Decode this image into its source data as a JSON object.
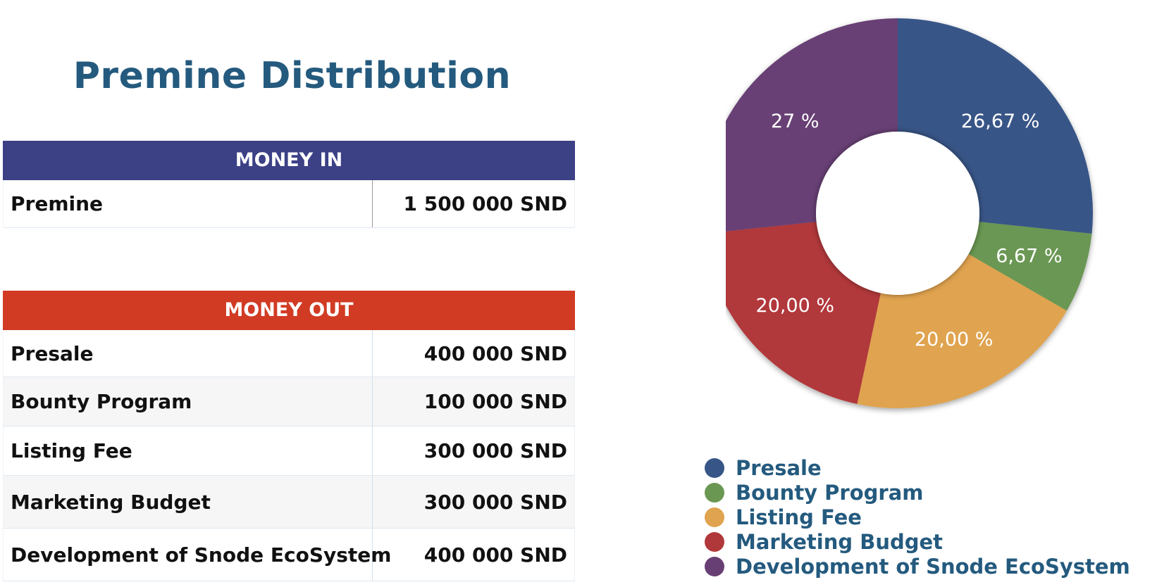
{
  "page": {
    "title": "Premine Distribution"
  },
  "money_in": {
    "header": "MONEY IN",
    "rows": [
      {
        "label": "Premine",
        "value": "1 500 000 SND"
      }
    ]
  },
  "money_out": {
    "header": "MONEY OUT",
    "rows": [
      {
        "label": "Presale",
        "value": "400 000 SND"
      },
      {
        "label": "Bounty Program",
        "value": "100 000 SND"
      },
      {
        "label": "Listing Fee",
        "value": "300 000 SND"
      },
      {
        "label": "Marketing Budget",
        "value": "300 000 SND"
      },
      {
        "label": "Development of Snode EcoSystem",
        "value": "400 000 SND"
      }
    ]
  },
  "chart_data": {
    "type": "pie",
    "donut": true,
    "categories": [
      "Presale",
      "Bounty Program",
      "Listing Fee",
      "Marketing Budget",
      "Development of Snode EcoSystem"
    ],
    "values": [
      400000,
      100000,
      300000,
      300000,
      400000
    ],
    "data_labels": [
      "26,67 %",
      "6,67 %",
      "20,00 %",
      "20,00 %",
      "27 %"
    ],
    "colors": [
      "#375587",
      "#6a9752",
      "#e0a34f",
      "#b1383a",
      "#683f74"
    ],
    "legend": "bottom",
    "title": ""
  }
}
